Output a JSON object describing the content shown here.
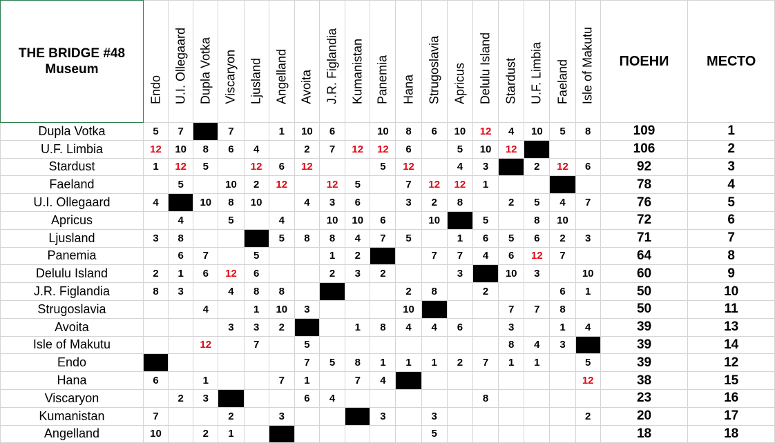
{
  "title": {
    "line1": "THE BRIDGE #48",
    "line2": "Museum"
  },
  "columns": [
    "Endo",
    "U.I. Ollegaard",
    "Dupla Votka",
    "Viscaryon",
    "Ljusland",
    "Angelland",
    "Avoita",
    "J.R. Figlandia",
    "Kumanistan",
    "Panemia",
    "Hana",
    "Strugoslavia",
    "Apricus",
    "Delulu Island",
    "Stardust",
    "U.F. Limbia",
    "Faeland",
    "Isle of Makutu"
  ],
  "headers": {
    "points": "ПОЕНИ",
    "place": "МЕСТО"
  },
  "rows": [
    {
      "name": "Dupla Votka",
      "cells": [
        "5",
        "7",
        "X",
        "7",
        "",
        "1",
        "10",
        "6",
        "",
        "10",
        "8",
        "6",
        "10",
        "12",
        "4",
        "10",
        "5",
        "8"
      ],
      "points": "109",
      "place": "1"
    },
    {
      "name": "U.F. Limbia",
      "cells": [
        "12",
        "10",
        "8",
        "6",
        "4",
        "",
        "2",
        "7",
        "12",
        "12",
        "6",
        "",
        "5",
        "10",
        "12",
        "X",
        "",
        ""
      ],
      "points": "106",
      "place": "2"
    },
    {
      "name": "Stardust",
      "cells": [
        "1",
        "12",
        "5",
        "",
        "12",
        "6",
        "12",
        "",
        "",
        "5",
        "12",
        "",
        "4",
        "3",
        "X",
        "2",
        "12",
        "6"
      ],
      "points": "92",
      "place": "3"
    },
    {
      "name": "Faeland",
      "cells": [
        "",
        "5",
        "",
        "10",
        "2",
        "12",
        "",
        "12",
        "5",
        "",
        "7",
        "12",
        "12",
        "1",
        "",
        "",
        "X",
        ""
      ],
      "points": "78",
      "place": "4"
    },
    {
      "name": "U.I. Ollegaard",
      "cells": [
        "4",
        "X",
        "10",
        "8",
        "10",
        "",
        "4",
        "3",
        "6",
        "",
        "3",
        "2",
        "8",
        "",
        "2",
        "5",
        "4",
        "7"
      ],
      "points": "76",
      "place": "5"
    },
    {
      "name": "Apricus",
      "cells": [
        "",
        "4",
        "",
        "5",
        "",
        "4",
        "",
        "10",
        "10",
        "6",
        "",
        "10",
        "X",
        "5",
        "",
        "8",
        "10",
        ""
      ],
      "points": "72",
      "place": "6"
    },
    {
      "name": "Ljusland",
      "cells": [
        "3",
        "8",
        "",
        "",
        "X",
        "5",
        "8",
        "8",
        "4",
        "7",
        "5",
        "",
        "1",
        "6",
        "5",
        "6",
        "2",
        "3"
      ],
      "points": "71",
      "place": "7"
    },
    {
      "name": "Panemia",
      "cells": [
        "",
        "6",
        "7",
        "",
        "5",
        "",
        "",
        "1",
        "2",
        "X",
        "",
        "7",
        "7",
        "4",
        "6",
        "12",
        "7",
        ""
      ],
      "points": "64",
      "place": "8"
    },
    {
      "name": "Delulu Island",
      "cells": [
        "2",
        "1",
        "6",
        "12",
        "6",
        "",
        "",
        "2",
        "3",
        "2",
        "",
        "",
        "3",
        "X",
        "10",
        "3",
        "",
        "10"
      ],
      "points": "60",
      "place": "9"
    },
    {
      "name": "J.R. Figlandia",
      "cells": [
        "8",
        "3",
        "",
        "4",
        "8",
        "8",
        "",
        "X",
        "",
        "",
        "2",
        "8",
        "",
        "2",
        "",
        "",
        "6",
        "1"
      ],
      "points": "50",
      "place": "10"
    },
    {
      "name": "Strugoslavia",
      "cells": [
        "",
        "",
        "4",
        "",
        "1",
        "10",
        "3",
        "",
        "",
        "",
        "10",
        "X",
        "",
        "",
        "7",
        "7",
        "8",
        ""
      ],
      "points": "50",
      "place": "11"
    },
    {
      "name": "Avoita",
      "cells": [
        "",
        "",
        "",
        "3",
        "3",
        "2",
        "X",
        "",
        "1",
        "8",
        "4",
        "4",
        "6",
        "",
        "3",
        "",
        "1",
        "4"
      ],
      "points": "39",
      "place": "13"
    },
    {
      "name": "Isle of Makutu",
      "cells": [
        "",
        "",
        "12",
        "",
        "7",
        "",
        "5",
        "",
        "",
        "",
        "",
        "",
        "",
        "",
        "8",
        "4",
        "3",
        "X"
      ],
      "points": "39",
      "place": "14"
    },
    {
      "name": "Endo",
      "cells": [
        "X",
        "",
        "",
        "",
        "",
        "",
        "7",
        "5",
        "8",
        "1",
        "1",
        "1",
        "2",
        "7",
        "1",
        "1",
        "",
        "5"
      ],
      "points": "39",
      "place": "12"
    },
    {
      "name": "Hana",
      "cells": [
        "6",
        "",
        "1",
        "",
        "",
        "7",
        "1",
        "",
        "7",
        "4",
        "X",
        "",
        "",
        "",
        "",
        "",
        "",
        "12"
      ],
      "points": "38",
      "place": "15"
    },
    {
      "name": "Viscaryon",
      "cells": [
        "",
        "2",
        "3",
        "X",
        "",
        "",
        "6",
        "4",
        "",
        "",
        "",
        "",
        "",
        "8",
        "",
        "",
        "",
        ""
      ],
      "points": "23",
      "place": "16"
    },
    {
      "name": "Kumanistan",
      "cells": [
        "7",
        "",
        "",
        "2",
        "",
        "3",
        "",
        "",
        "X",
        "3",
        "",
        "3",
        "",
        "",
        "",
        "",
        "",
        "2"
      ],
      "points": "20",
      "place": "17"
    },
    {
      "name": "Angelland",
      "cells": [
        "10",
        "",
        "2",
        "1",
        "",
        "X",
        "",
        "",
        "",
        "",
        "",
        "5",
        "",
        "",
        "",
        "",
        "",
        ""
      ],
      "points": "18",
      "place": "18"
    }
  ],
  "colors": {
    "twelve_points": "#e30613",
    "self_vote": "#000000",
    "title_border": "#2e7d4f"
  }
}
